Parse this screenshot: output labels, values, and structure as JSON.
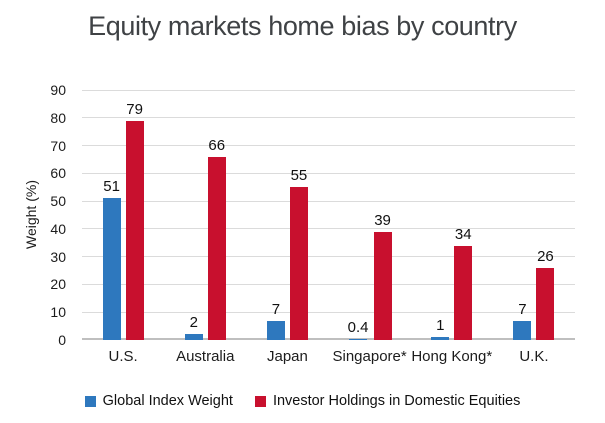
{
  "title": "Equity markets home bias by country",
  "chart_data": {
    "type": "bar",
    "title": "Equity markets home bias by country",
    "categories": [
      "U.S.",
      "Australia",
      "Japan",
      "Singapore*",
      "Hong Kong*",
      "U.K."
    ],
    "series": [
      {
        "name": "Global Index Weight",
        "color": "#2e78be",
        "values": [
          51,
          2,
          7,
          0.4,
          1,
          7
        ]
      },
      {
        "name": "Investor Holdings in Domestic Equities",
        "color": "#c8102e",
        "values": [
          79,
          66,
          55,
          39,
          34,
          26
        ]
      }
    ],
    "xlabel": "",
    "ylabel": "Weight (%)",
    "ylim": [
      0,
      90
    ],
    "y_ticks": [
      0,
      10,
      20,
      30,
      40,
      50,
      60,
      70,
      80,
      90
    ],
    "grid": true,
    "legend_position": "bottom",
    "data_labels": true
  },
  "colors": {
    "background": "#ffffff",
    "title_text": "#3f4245",
    "axis_text": "#1c1c1c",
    "gridline": "#dbdbdb",
    "baseline": "#bfbfbf",
    "series_blue": "#2e78be",
    "series_red": "#c8102e"
  }
}
